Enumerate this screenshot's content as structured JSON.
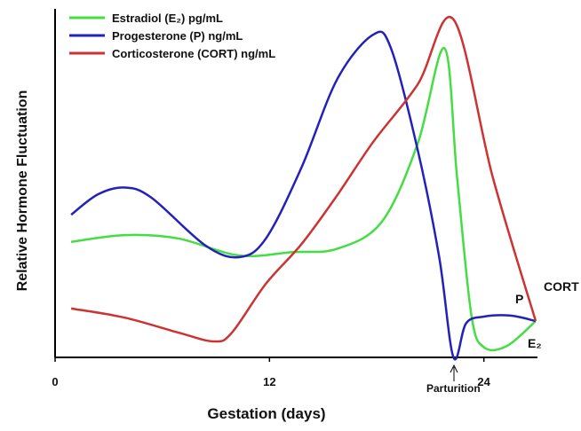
{
  "chart_data": {
    "type": "line",
    "x_label": "Gestation (days)",
    "y_label": "Relative Hormone Fluctuation",
    "xlim": [
      0,
      27
    ],
    "xticks": [
      0,
      12,
      24
    ],
    "ylim": [
      0,
      100
    ],
    "legend": "upper left",
    "annotations": [
      "P",
      "CORT",
      "E₂",
      "Parturition"
    ],
    "series": [
      {
        "name": "Estradiol (E₂) pg/mL",
        "color": "#44dd44",
        "x": [
          0.9,
          3.9,
          6.9,
          10.3,
          13.3,
          15.8,
          18.3,
          20.3,
          21.8,
          22.5,
          23.3,
          24,
          25.3,
          26.9
        ],
        "values": [
          34,
          36,
          35,
          30,
          31,
          32,
          40,
          63,
          91,
          53,
          12.5,
          3,
          3.4,
          10.7
        ]
      },
      {
        "name": "Progesterone (P) ng/mL",
        "color": "#2222bb",
        "x": [
          0.9,
          2.4,
          3.9,
          5.4,
          8.4,
          10.3,
          11.8,
          13.8,
          15.8,
          17.8,
          18.8,
          20.3,
          21.5,
          22.3,
          23,
          24,
          25.5,
          26.9
        ],
        "values": [
          42,
          48,
          50,
          47,
          33,
          29.5,
          35,
          56,
          82,
          95,
          91,
          61,
          29.5,
          0,
          10,
          12,
          12.3,
          10.7
        ]
      },
      {
        "name": "Corticosterone (CORT) ng/mL",
        "color": "#cc3333",
        "x": [
          0.9,
          3.9,
          6.9,
          8.9,
          9.9,
          11.8,
          13.8,
          15.8,
          17.8,
          20.3,
          22.3,
          24.5,
          26.9
        ],
        "values": [
          14.4,
          11.7,
          7.3,
          4.7,
          7.3,
          21.7,
          33.4,
          47.8,
          63.4,
          80.4,
          99.5,
          53,
          10.7
        ]
      }
    ]
  }
}
